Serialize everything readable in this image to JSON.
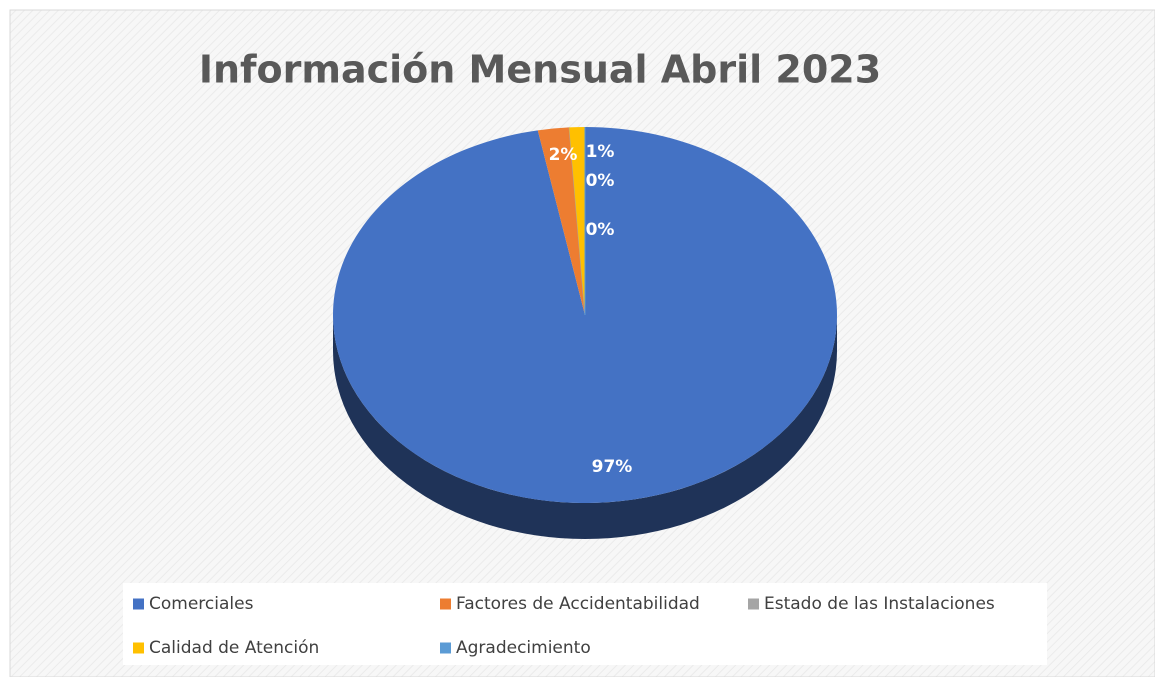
{
  "chart_data": {
    "type": "pie",
    "title": "Información Mensual Abril 2023",
    "categories": [
      "Comerciales",
      "Factores de Accidentabilidad",
      "Estado de las Instalaciones",
      "Calidad de Atención",
      "Agradecimiento"
    ],
    "values": [
      97,
      2,
      0,
      1,
      0
    ],
    "value_labels": [
      "97%",
      "2%",
      "0%",
      "1%",
      "0%"
    ],
    "colors": [
      "#4472c4",
      "#ed7d31",
      "#a5a5a5",
      "#ffc000",
      "#5b9bd5"
    ],
    "legend": "bottom"
  }
}
